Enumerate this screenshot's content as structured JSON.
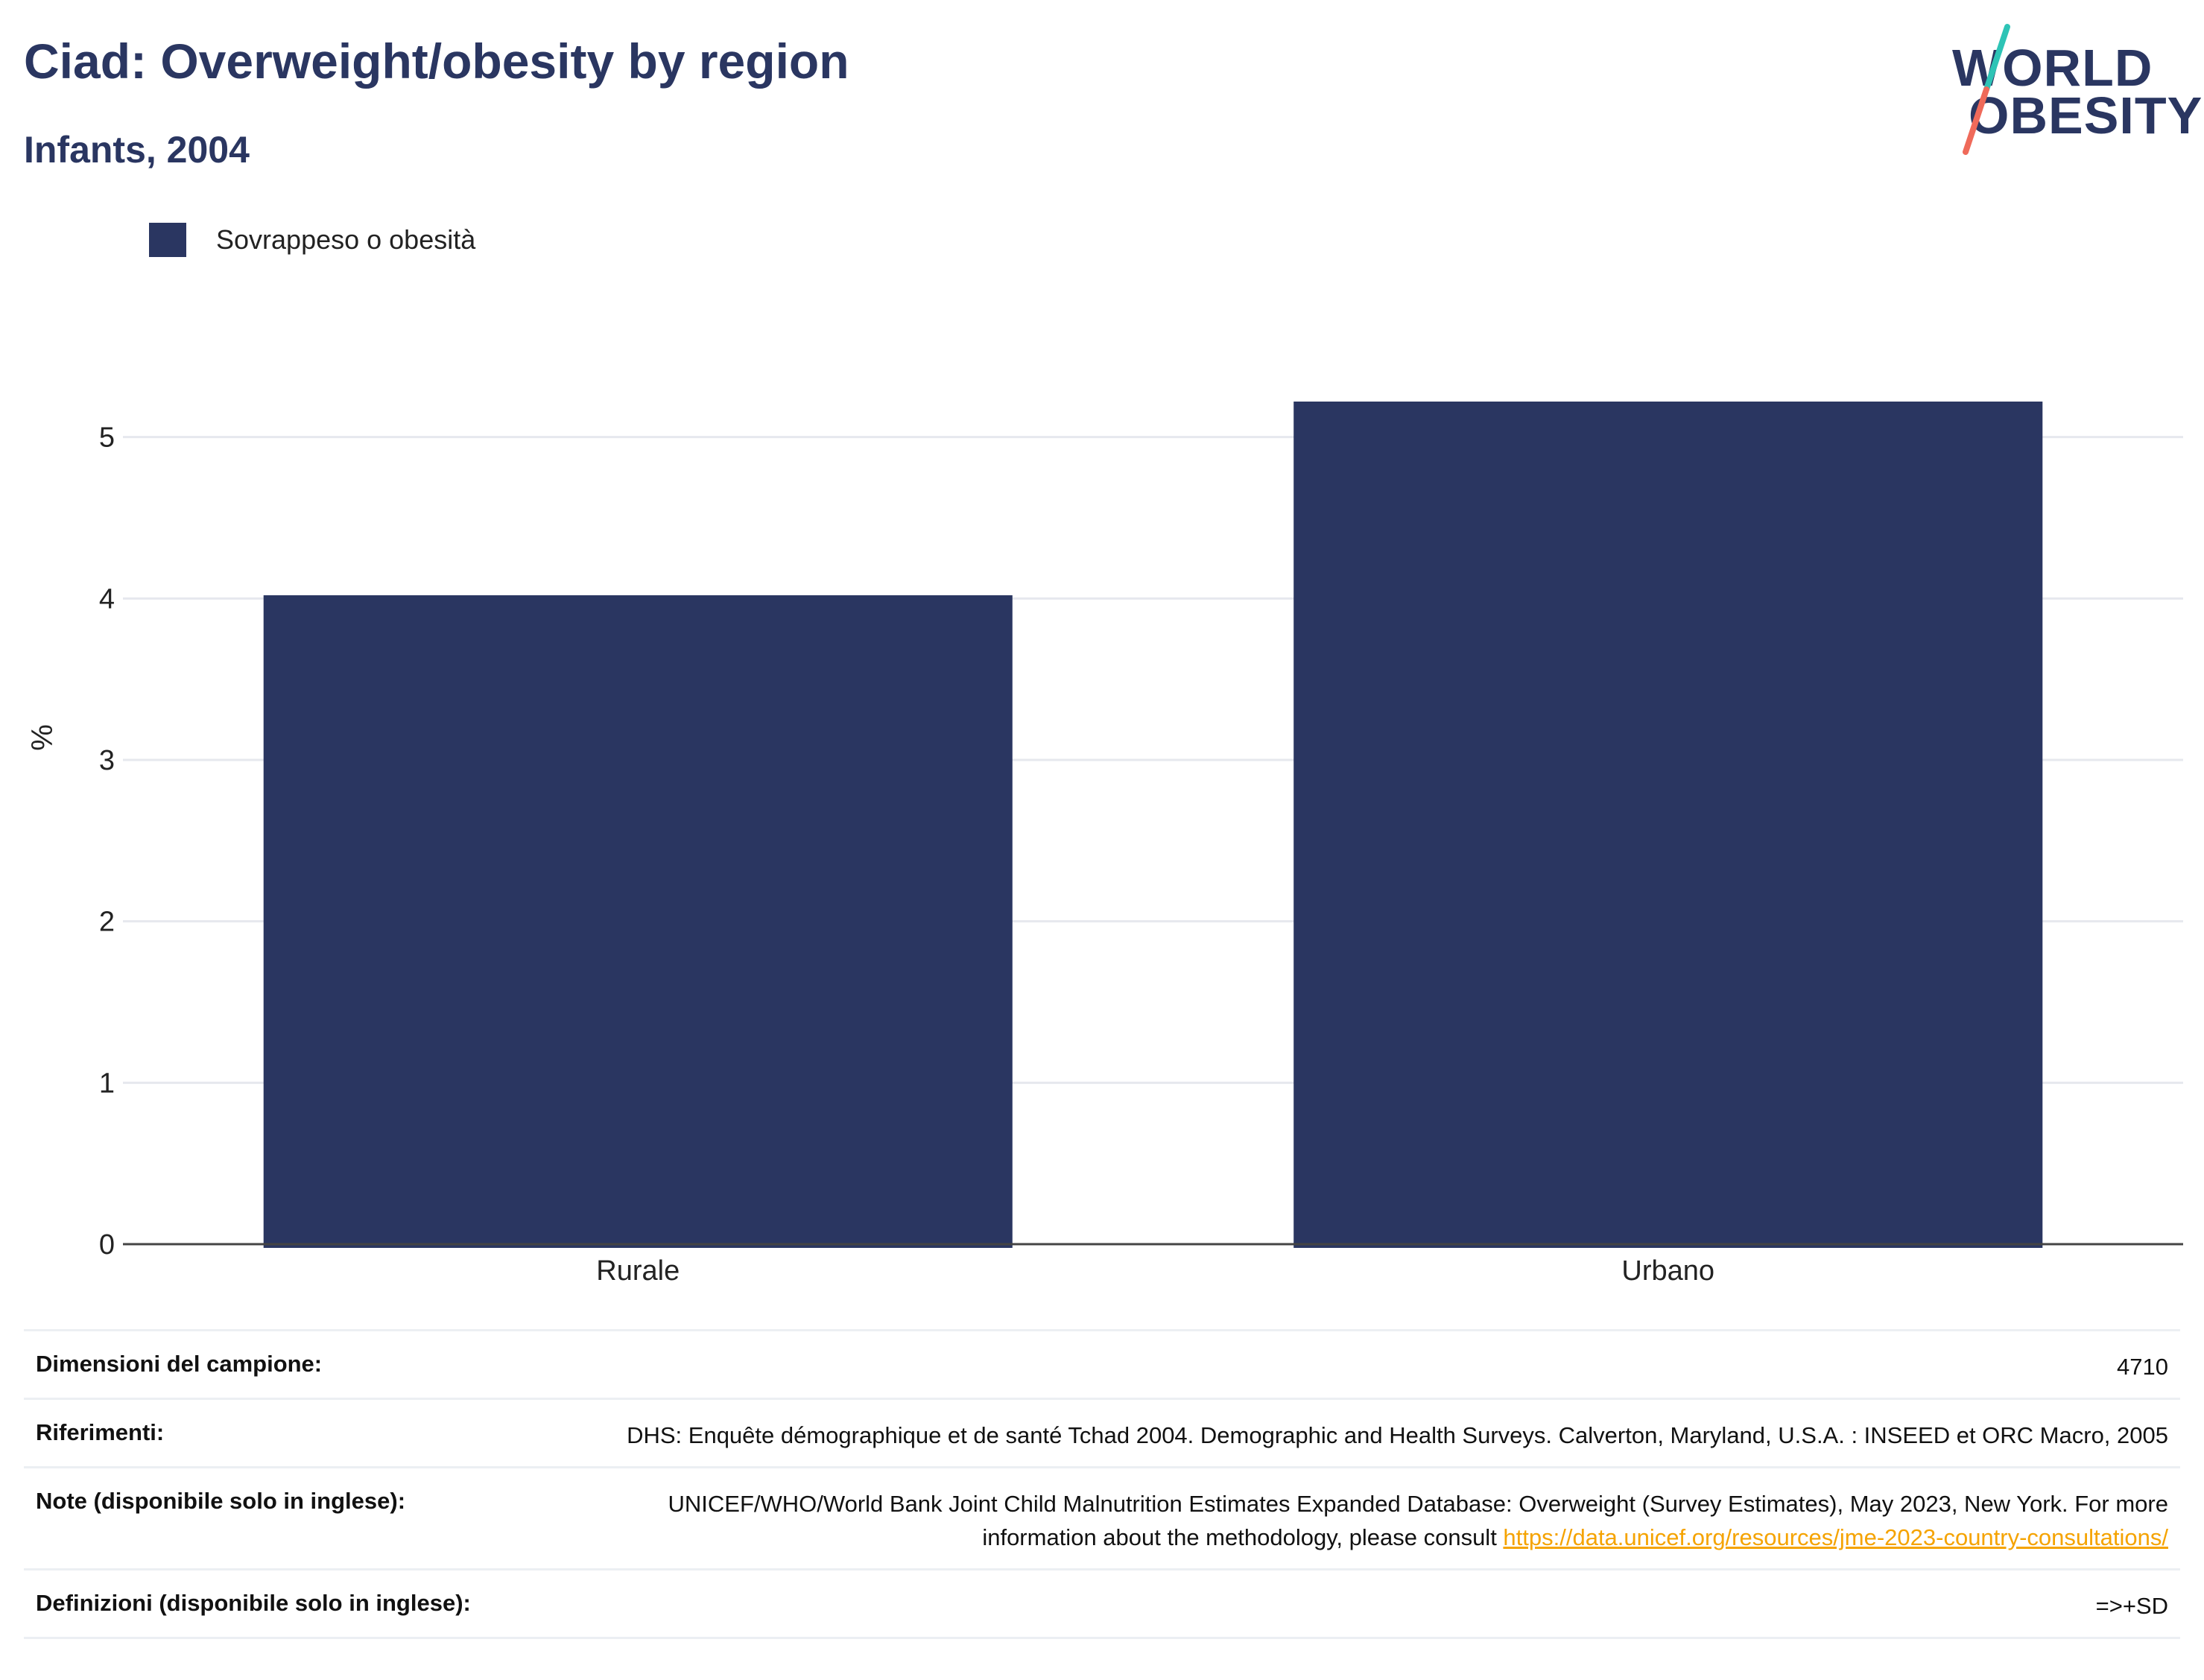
{
  "header": {
    "title": "Ciad: Overweight/obesity by region",
    "subtitle": "Infants, 2004"
  },
  "logo": {
    "line1": "WORLD",
    "line2": "OBESITY"
  },
  "legend": {
    "label": "Sovrappeso o obesità"
  },
  "colors": {
    "bar": "#2a3661",
    "text": "#2a3661",
    "link": "#f5a300",
    "grid": "#e6e8ee",
    "logo_slash_top": "#2ec4b6",
    "logo_slash_bottom": "#ef6a5a"
  },
  "chart_data": {
    "type": "bar",
    "categories": [
      "Rurale",
      "Urbano"
    ],
    "series": [
      {
        "name": "Sovrappeso o obesità",
        "values": [
          4.02,
          5.22
        ]
      }
    ],
    "title": "Ciad: Overweight/obesity by region",
    "subtitle": "Infants, 2004",
    "xlabel": "",
    "ylabel": "%",
    "ylim": [
      0,
      5.4
    ],
    "yticks": [
      0,
      1,
      2,
      3,
      4,
      5
    ],
    "grid": true,
    "legend_position": "top-left"
  },
  "info": {
    "rows": [
      {
        "label": "Dimensioni del campione:",
        "value": "4710"
      },
      {
        "label": "Riferimenti:",
        "value": "DHS: Enquête démographique et de santé Tchad 2004. Demographic and Health Surveys. Calverton, Maryland, U.S.A. : INSEED et ORC Macro, 2005"
      },
      {
        "label": "Note (disponibile solo in inglese):",
        "value": "UNICEF/WHO/World Bank Joint Child Malnutrition Estimates Expanded Database: Overweight (Survey Estimates), May 2023, New York. For more information about the methodology, please consult ",
        "link": "https://data.unicef.org/resources/jme-2023-country-consultations/"
      },
      {
        "label": "Definizioni (disponibile solo in inglese):",
        "value": "=>+SD"
      }
    ]
  }
}
